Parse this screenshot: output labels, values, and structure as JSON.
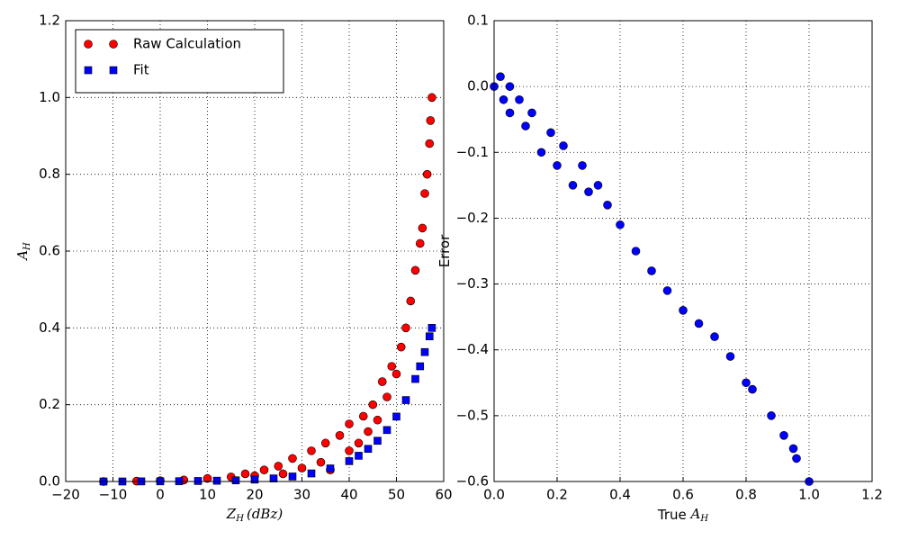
{
  "chart_data": [
    {
      "type": "scatter",
      "xlabel": [
        "Z",
        "H",
        "(dBz)"
      ],
      "ylabel": [
        "A",
        "H"
      ],
      "xlim": [
        -20,
        60
      ],
      "ylim": [
        0,
        1.2
      ],
      "xticks": [
        {
          "value": -20,
          "label": "−20"
        },
        {
          "value": -10,
          "label": "−10"
        },
        0,
        10,
        20,
        30,
        40,
        50,
        60
      ],
      "yticks": [
        {
          "value": 0,
          "label": "0.0"
        },
        0.2,
        0.4,
        0.6,
        0.8,
        {
          "value": 1,
          "label": "1.0"
        },
        1.2
      ],
      "grid": true,
      "legend": "upper left",
      "series": [
        {
          "name": "Raw Calculation",
          "color": "#ff0000",
          "marker": "circle",
          "x": [
            -12,
            -5,
            0,
            5,
            10,
            15,
            18,
            20,
            22,
            25,
            26,
            28,
            30,
            32,
            34,
            35,
            36,
            38,
            40,
            40,
            42,
            43,
            44,
            45,
            46,
            47,
            48,
            49,
            50,
            51,
            52,
            53,
            54,
            55,
            55.5,
            56,
            56.5,
            57,
            57.2,
            57.5
          ],
          "values": [
            0,
            0.001,
            0.002,
            0.004,
            0.008,
            0.012,
            0.02,
            0.015,
            0.03,
            0.04,
            0.02,
            0.06,
            0.035,
            0.08,
            0.05,
            0.1,
            0.03,
            0.12,
            0.08,
            0.15,
            0.1,
            0.17,
            0.13,
            0.2,
            0.16,
            0.26,
            0.22,
            0.3,
            0.28,
            0.35,
            0.4,
            0.47,
            0.55,
            0.62,
            0.66,
            0.75,
            0.8,
            0.88,
            0.94,
            1.0
          ]
        },
        {
          "name": "Fit",
          "color": "#0000ff",
          "marker": "square",
          "x": [
            -12,
            -8,
            -4,
            0,
            4,
            8,
            12,
            16,
            20,
            24,
            28,
            32,
            36,
            40,
            42,
            44,
            46,
            48,
            50,
            52,
            54,
            55,
            56,
            57,
            57.5
          ],
          "values": [
            0,
            0,
            0.0003,
            0.0005,
            0.0008,
            0.0013,
            0.002,
            0.003,
            0.005,
            0.008,
            0.013,
            0.021,
            0.034,
            0.053,
            0.067,
            0.085,
            0.106,
            0.134,
            0.169,
            0.212,
            0.267,
            0.3,
            0.337,
            0.378,
            0.4
          ]
        }
      ]
    },
    {
      "type": "scatter",
      "xlabel": [
        "True ",
        "A",
        "H"
      ],
      "ylabel": [
        "Error"
      ],
      "xlim": [
        0,
        1.2
      ],
      "ylim": [
        -0.6,
        0.1
      ],
      "xticks": [
        {
          "value": 0,
          "label": "0.0"
        },
        0.2,
        0.4,
        0.6,
        0.8,
        {
          "value": 1,
          "label": "1.0"
        },
        1.2
      ],
      "yticks": [
        {
          "value": -0.6,
          "label": "−0.6"
        },
        {
          "value": -0.5,
          "label": "−0.5"
        },
        {
          "value": -0.4,
          "label": "−0.4"
        },
        {
          "value": -0.3,
          "label": "−0.3"
        },
        {
          "value": -0.2,
          "label": "−0.2"
        },
        {
          "value": -0.1,
          "label": "−0.1"
        },
        {
          "value": 0,
          "label": "0.0"
        },
        0.1
      ],
      "grid": true,
      "series": [
        {
          "color": "#0000ff",
          "marker": "circle",
          "x": [
            0,
            0.02,
            0.03,
            0.05,
            0.05,
            0.08,
            0.1,
            0.12,
            0.15,
            0.18,
            0.2,
            0.22,
            0.25,
            0.28,
            0.3,
            0.33,
            0.36,
            0.4,
            0.45,
            0.5,
            0.55,
            0.6,
            0.65,
            0.7,
            0.75,
            0.8,
            0.82,
            0.88,
            0.92,
            0.95,
            0.96,
            1.0
          ],
          "values": [
            0,
            0.015,
            -0.02,
            0,
            -0.04,
            -0.02,
            -0.06,
            -0.04,
            -0.1,
            -0.07,
            -0.12,
            -0.09,
            -0.15,
            -0.12,
            -0.16,
            -0.15,
            -0.18,
            -0.21,
            -0.25,
            -0.28,
            -0.31,
            -0.34,
            -0.36,
            -0.38,
            -0.41,
            -0.45,
            -0.46,
            -0.5,
            -0.53,
            -0.55,
            -0.565,
            -0.6
          ]
        }
      ]
    }
  ]
}
